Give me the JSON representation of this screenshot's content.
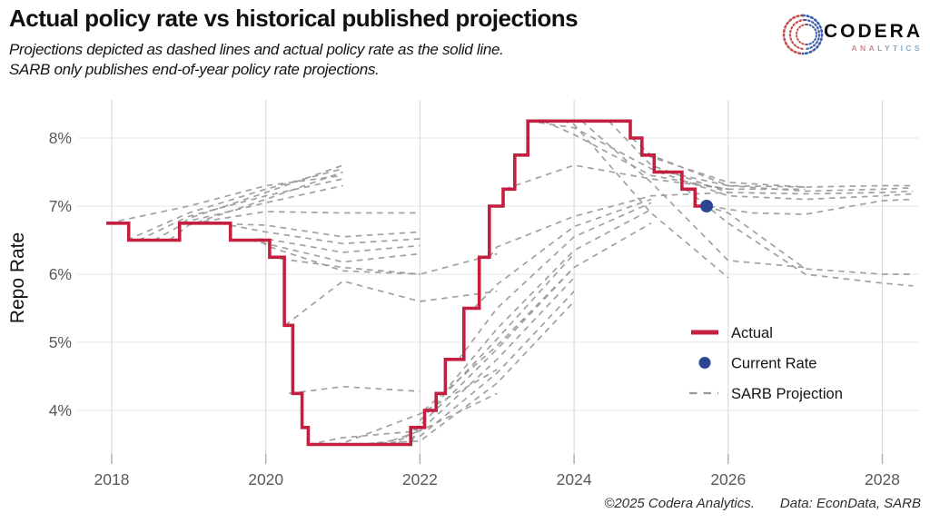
{
  "header": {
    "title": "Actual policy rate vs historical published projections",
    "subtitle_line1": "Projections depicted as dashed lines and actual policy rate as the solid line.",
    "subtitle_line2": "SARB only publishes end-of-year policy rate projections."
  },
  "logo": {
    "name": "CODERA",
    "sub_part1": "ANA",
    "sub_part2": "LY",
    "sub_part3": "TICS"
  },
  "footer": {
    "copyright": "©2025 Codera Analytics.",
    "source": "Data: EconData, SARB"
  },
  "colors": {
    "actual": "#c41f3e",
    "current_rate": "#2c4694",
    "projection": "#999999",
    "gridline_h": "#ebebeb",
    "gridline_v": "#dcdcdc",
    "tick": "#b0b0b0"
  },
  "chart_data": {
    "type": "line",
    "title": "Actual policy rate vs historical published projections",
    "xlabel": "",
    "ylabel": "Repo Rate",
    "x_ticks": [
      2018,
      2020,
      2022,
      2024,
      2026,
      2028
    ],
    "y_ticks": [
      "8%",
      "7%",
      "6%",
      "5%",
      "4%"
    ],
    "y_tick_values": [
      8,
      7,
      6,
      5,
      4
    ],
    "xlim": [
      2017.85,
      2028.5
    ],
    "ylim": [
      3.2,
      8.55
    ],
    "grid": true,
    "legend_position": "right-center",
    "legend": [
      {
        "label": "Actual",
        "marker": "solid-line",
        "color": "#c41f3e"
      },
      {
        "label": "Current Rate",
        "marker": "dot",
        "color": "#2c4694"
      },
      {
        "label": "SARB Projection",
        "marker": "dashed-line",
        "color": "#999999"
      }
    ],
    "actual_steps": [
      [
        2017.93,
        6.75
      ],
      [
        2018.22,
        6.5
      ],
      [
        2018.88,
        6.75
      ],
      [
        2019.54,
        6.5
      ],
      [
        2020.05,
        6.25
      ],
      [
        2020.24,
        5.25
      ],
      [
        2020.35,
        4.25
      ],
      [
        2020.47,
        3.75
      ],
      [
        2020.55,
        3.5
      ],
      [
        2021.88,
        3.75
      ],
      [
        2022.06,
        4.0
      ],
      [
        2022.21,
        4.25
      ],
      [
        2022.33,
        4.75
      ],
      [
        2022.57,
        5.5
      ],
      [
        2022.77,
        6.25
      ],
      [
        2022.9,
        7.0
      ],
      [
        2023.08,
        7.25
      ],
      [
        2023.23,
        7.75
      ],
      [
        2023.4,
        8.25
      ],
      [
        2024.73,
        8.0
      ],
      [
        2024.88,
        7.75
      ],
      [
        2025.04,
        7.5
      ],
      [
        2025.4,
        7.25
      ],
      [
        2025.57,
        7.0
      ]
    ],
    "current_rate": {
      "x": 2025.72,
      "value": 7.0
    },
    "projections": [
      [
        [
          2017.95,
          6.75
        ],
        [
          2019,
          7.0
        ],
        [
          2020,
          7.3
        ],
        [
          2021,
          7.45
        ]
      ],
      [
        [
          2018.2,
          6.5
        ],
        [
          2019,
          6.9
        ],
        [
          2020,
          7.25
        ],
        [
          2021,
          7.55
        ]
      ],
      [
        [
          2018.35,
          6.5
        ],
        [
          2019,
          6.85
        ],
        [
          2020,
          7.15
        ],
        [
          2021,
          7.4
        ]
      ],
      [
        [
          2018.55,
          6.5
        ],
        [
          2019,
          6.78
        ],
        [
          2020,
          7.05
        ],
        [
          2021,
          7.3
        ]
      ],
      [
        [
          2018.75,
          6.5
        ],
        [
          2019,
          6.72
        ],
        [
          2020,
          7.1
        ],
        [
          2021,
          7.5
        ]
      ],
      [
        [
          2018.92,
          6.75
        ],
        [
          2019,
          6.82
        ],
        [
          2020,
          7.2
        ],
        [
          2021,
          7.6
        ]
      ],
      [
        [
          2019.05,
          6.75
        ],
        [
          2020,
          6.92
        ],
        [
          2021,
          6.9
        ],
        [
          2022,
          6.9
        ]
      ],
      [
        [
          2019.2,
          6.75
        ],
        [
          2020,
          6.72
        ],
        [
          2021,
          6.55
        ],
        [
          2022,
          6.62
        ]
      ],
      [
        [
          2019.4,
          6.75
        ],
        [
          2020,
          6.62
        ],
        [
          2021,
          6.45
        ],
        [
          2022,
          6.52
        ]
      ],
      [
        [
          2019.6,
          6.5
        ],
        [
          2020,
          6.52
        ],
        [
          2021,
          6.32
        ],
        [
          2022,
          6.42
        ]
      ],
      [
        [
          2019.8,
          6.5
        ],
        [
          2020,
          6.45
        ],
        [
          2021,
          6.18
        ],
        [
          2022,
          6.3
        ]
      ],
      [
        [
          2019.95,
          6.5
        ],
        [
          2020,
          6.42
        ],
        [
          2021,
          6.05
        ],
        [
          2022,
          6.0
        ]
      ],
      [
        [
          2020.05,
          6.25
        ],
        [
          2021,
          6.1
        ],
        [
          2022,
          6.0
        ],
        [
          2023,
          6.3
        ]
      ],
      [
        [
          2020.25,
          5.25
        ],
        [
          2021,
          5.9
        ],
        [
          2022,
          5.6
        ],
        [
          2023,
          5.75
        ]
      ],
      [
        [
          2020.3,
          4.25
        ],
        [
          2021,
          4.35
        ],
        [
          2022,
          4.28
        ]
      ],
      [
        [
          2020.55,
          3.5
        ],
        [
          2021,
          3.6
        ],
        [
          2022,
          3.7
        ],
        [
          2023,
          4.25
        ]
      ],
      [
        [
          2020.9,
          3.5
        ],
        [
          2021,
          3.52
        ],
        [
          2022,
          3.95
        ],
        [
          2023,
          4.6
        ]
      ],
      [
        [
          2021.05,
          3.5
        ],
        [
          2022,
          3.55
        ],
        [
          2023,
          4.4
        ],
        [
          2024,
          5.6
        ]
      ],
      [
        [
          2021.3,
          3.5
        ],
        [
          2022,
          3.62
        ],
        [
          2023,
          4.55
        ],
        [
          2024,
          5.75
        ]
      ],
      [
        [
          2021.5,
          3.5
        ],
        [
          2022,
          3.7
        ],
        [
          2023,
          4.75
        ],
        [
          2024,
          5.95
        ]
      ],
      [
        [
          2021.7,
          3.5
        ],
        [
          2022,
          3.78
        ],
        [
          2023,
          4.9
        ],
        [
          2024,
          6.1
        ]
      ],
      [
        [
          2021.9,
          3.55
        ],
        [
          2022,
          3.85
        ],
        [
          2023,
          5.05
        ],
        [
          2024,
          6.3
        ]
      ],
      [
        [
          2022.05,
          4.0
        ],
        [
          2023,
          4.95
        ],
        [
          2024,
          6.1
        ],
        [
          2025,
          6.75
        ]
      ],
      [
        [
          2022.3,
          4.25
        ],
        [
          2023,
          5.2
        ],
        [
          2024,
          6.35
        ],
        [
          2025,
          6.95
        ]
      ],
      [
        [
          2022.5,
          4.75
        ],
        [
          2023,
          5.5
        ],
        [
          2024,
          6.55
        ],
        [
          2025,
          7.05
        ]
      ],
      [
        [
          2022.7,
          5.5
        ],
        [
          2023,
          5.85
        ],
        [
          2024,
          6.7
        ],
        [
          2025,
          7.1
        ]
      ],
      [
        [
          2022.9,
          6.25
        ],
        [
          2023,
          6.4
        ],
        [
          2024,
          6.85
        ],
        [
          2025,
          7.15
        ],
        [
          2026,
          7.2
        ]
      ],
      [
        [
          2023.1,
          7.25
        ],
        [
          2024,
          7.6
        ],
        [
          2025,
          7.4
        ],
        [
          2026,
          7.25
        ],
        [
          2027,
          7.25
        ]
      ],
      [
        [
          2023.4,
          8.25
        ],
        [
          2024,
          8.15
        ],
        [
          2025,
          7.55
        ],
        [
          2026,
          7.3
        ],
        [
          2027,
          7.28
        ]
      ],
      [
        [
          2023.6,
          8.25
        ],
        [
          2024,
          8.05
        ],
        [
          2025,
          7.45
        ],
        [
          2026,
          7.25
        ]
      ],
      [
        [
          2023.85,
          8.25
        ],
        [
          2024,
          8.2
        ],
        [
          2025,
          6.9
        ],
        [
          2026,
          5.95
        ]
      ],
      [
        [
          2024.1,
          8.25
        ],
        [
          2025,
          7.35
        ],
        [
          2026,
          6.2
        ],
        [
          2027,
          6.1
        ]
      ],
      [
        [
          2024.45,
          8.25
        ],
        [
          2025,
          7.6
        ],
        [
          2026,
          7.2
        ],
        [
          2027,
          7.18
        ],
        [
          2028,
          7.2
        ],
        [
          2028.4,
          7.22
        ]
      ],
      [
        [
          2024.75,
          8.0
        ],
        [
          2025,
          7.75
        ],
        [
          2026,
          7.3
        ],
        [
          2027,
          7.22
        ],
        [
          2028,
          7.25
        ],
        [
          2028.4,
          7.27
        ]
      ],
      [
        [
          2024.95,
          7.75
        ],
        [
          2025,
          7.72
        ],
        [
          2026,
          7.35
        ],
        [
          2027,
          7.28
        ],
        [
          2028,
          7.3
        ],
        [
          2028.4,
          7.3
        ]
      ],
      [
        [
          2025.1,
          7.5
        ],
        [
          2026,
          7.15
        ],
        [
          2027,
          7.1
        ],
        [
          2028,
          7.15
        ],
        [
          2028.4,
          7.18
        ]
      ],
      [
        [
          2025.45,
          7.25
        ],
        [
          2026,
          6.75
        ],
        [
          2027,
          6.0
        ],
        [
          2028,
          5.87
        ],
        [
          2028.4,
          5.83
        ]
      ],
      [
        [
          2025.7,
          7.0
        ],
        [
          2026,
          6.9
        ],
        [
          2027,
          6.08
        ],
        [
          2028,
          6.0
        ],
        [
          2028.4,
          6.0
        ]
      ],
      [
        [
          2025.75,
          7.0
        ],
        [
          2026.3,
          6.9
        ],
        [
          2027,
          6.88
        ],
        [
          2028,
          7.08
        ],
        [
          2028.4,
          7.1
        ]
      ]
    ]
  }
}
